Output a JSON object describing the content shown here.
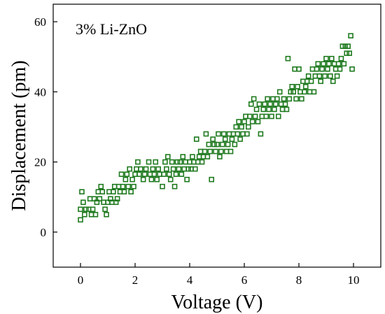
{
  "chart_data": {
    "type": "scatter",
    "annotation": "3% Li-ZnO",
    "xlabel": "Voltage (V)",
    "ylabel": "Displacement (pm)",
    "xlim": [
      -1,
      11
    ],
    "ylim": [
      -10,
      65
    ],
    "x_ticks": [
      0,
      2,
      4,
      6,
      8,
      10
    ],
    "y_ticks": [
      0,
      20,
      40,
      60
    ],
    "grid": false,
    "legend": "none",
    "marker": "square",
    "color": "#1f7a1f",
    "points": [
      [
        0.0,
        3.5
      ],
      [
        0.0,
        6.5
      ],
      [
        0.05,
        11.5
      ],
      [
        0.1,
        8.5
      ],
      [
        0.15,
        5.0
      ],
      [
        0.2,
        6.5
      ],
      [
        0.3,
        6.5
      ],
      [
        0.35,
        9.5
      ],
      [
        0.4,
        5.0
      ],
      [
        0.45,
        6.5
      ],
      [
        0.5,
        9.5
      ],
      [
        0.55,
        5.0
      ],
      [
        0.6,
        8.5
      ],
      [
        0.65,
        11.5
      ],
      [
        0.7,
        9.5
      ],
      [
        0.75,
        13.0
      ],
      [
        0.8,
        11.5
      ],
      [
        0.85,
        8.5
      ],
      [
        0.9,
        6.5
      ],
      [
        0.95,
        5.0
      ],
      [
        1.0,
        8.5
      ],
      [
        1.05,
        11.5
      ],
      [
        1.1,
        9.5
      ],
      [
        1.15,
        8.5
      ],
      [
        1.2,
        11.5
      ],
      [
        1.25,
        13.0
      ],
      [
        1.3,
        8.5
      ],
      [
        1.35,
        9.5
      ],
      [
        1.4,
        13.0
      ],
      [
        1.45,
        11.5
      ],
      [
        1.5,
        16.5
      ],
      [
        1.55,
        13.0
      ],
      [
        1.6,
        11.5
      ],
      [
        1.65,
        15.0
      ],
      [
        1.7,
        16.5
      ],
      [
        1.75,
        13.0
      ],
      [
        1.8,
        18.0
      ],
      [
        1.85,
        11.5
      ],
      [
        1.9,
        15.0
      ],
      [
        1.95,
        13.0
      ],
      [
        2.0,
        16.5
      ],
      [
        2.05,
        18.0
      ],
      [
        2.1,
        20.0
      ],
      [
        2.15,
        16.5
      ],
      [
        2.2,
        18.0
      ],
      [
        2.3,
        15.0
      ],
      [
        2.35,
        16.5
      ],
      [
        2.4,
        18.0
      ],
      [
        2.5,
        20.0
      ],
      [
        2.55,
        16.5
      ],
      [
        2.6,
        15.0
      ],
      [
        2.65,
        18.0
      ],
      [
        2.7,
        16.5
      ],
      [
        2.75,
        20.0
      ],
      [
        2.8,
        15.0
      ],
      [
        2.85,
        18.0
      ],
      [
        2.9,
        16.5
      ],
      [
        3.0,
        13.0
      ],
      [
        3.05,
        16.5
      ],
      [
        3.1,
        20.0
      ],
      [
        3.15,
        18.0
      ],
      [
        3.2,
        21.5
      ],
      [
        3.25,
        16.5
      ],
      [
        3.3,
        15.0
      ],
      [
        3.35,
        20.0
      ],
      [
        3.4,
        18.0
      ],
      [
        3.45,
        13.0
      ],
      [
        3.5,
        16.5
      ],
      [
        3.55,
        20.0
      ],
      [
        3.6,
        18.0
      ],
      [
        3.65,
        20.0
      ],
      [
        3.7,
        16.5
      ],
      [
        3.75,
        21.5
      ],
      [
        3.8,
        18.0
      ],
      [
        3.85,
        20.0
      ],
      [
        3.9,
        15.0
      ],
      [
        3.95,
        18.0
      ],
      [
        4.0,
        20.0
      ],
      [
        4.05,
        18.0
      ],
      [
        4.1,
        21.5
      ],
      [
        4.15,
        20.0
      ],
      [
        4.2,
        18.0
      ],
      [
        4.25,
        26.5
      ],
      [
        4.3,
        20.0
      ],
      [
        4.35,
        21.5
      ],
      [
        4.4,
        23.0
      ],
      [
        4.45,
        20.0
      ],
      [
        4.5,
        21.5
      ],
      [
        4.55,
        23.0
      ],
      [
        4.6,
        28.0
      ],
      [
        4.65,
        21.5
      ],
      [
        4.7,
        25.0
      ],
      [
        4.75,
        23.0
      ],
      [
        4.8,
        15.0
      ],
      [
        4.85,
        26.5
      ],
      [
        4.9,
        25.0
      ],
      [
        4.95,
        23.0
      ],
      [
        5.0,
        25.0
      ],
      [
        5.05,
        28.0
      ],
      [
        5.1,
        21.5
      ],
      [
        5.15,
        23.0
      ],
      [
        5.2,
        25.0
      ],
      [
        5.25,
        28.0
      ],
      [
        5.3,
        26.5
      ],
      [
        5.35,
        23.0
      ],
      [
        5.4,
        25.0
      ],
      [
        5.45,
        28.0
      ],
      [
        5.5,
        23.0
      ],
      [
        5.55,
        26.5
      ],
      [
        5.6,
        28.0
      ],
      [
        5.65,
        25.0
      ],
      [
        5.7,
        30.0
      ],
      [
        5.75,
        28.0
      ],
      [
        5.8,
        31.5
      ],
      [
        5.85,
        26.5
      ],
      [
        5.9,
        30.0
      ],
      [
        5.95,
        28.0
      ],
      [
        6.0,
        31.5
      ],
      [
        6.05,
        33.0
      ],
      [
        6.1,
        28.0
      ],
      [
        6.15,
        30.0
      ],
      [
        6.2,
        33.0
      ],
      [
        6.25,
        36.5
      ],
      [
        6.3,
        31.5
      ],
      [
        6.35,
        38.0
      ],
      [
        6.4,
        33.0
      ],
      [
        6.45,
        35.0
      ],
      [
        6.5,
        31.5
      ],
      [
        6.55,
        36.5
      ],
      [
        6.6,
        28.0
      ],
      [
        6.65,
        33.0
      ],
      [
        6.7,
        35.0
      ],
      [
        6.75,
        36.5
      ],
      [
        6.8,
        33.0
      ],
      [
        6.85,
        38.0
      ],
      [
        6.9,
        35.0
      ],
      [
        6.95,
        36.5
      ],
      [
        7.0,
        33.0
      ],
      [
        7.05,
        38.0
      ],
      [
        7.1,
        35.0
      ],
      [
        7.15,
        36.5
      ],
      [
        7.2,
        38.0
      ],
      [
        7.25,
        33.0
      ],
      [
        7.3,
        40.0
      ],
      [
        7.35,
        36.5
      ],
      [
        7.4,
        35.0
      ],
      [
        7.45,
        38.0
      ],
      [
        7.5,
        36.5
      ],
      [
        7.55,
        35.0
      ],
      [
        7.6,
        49.5
      ],
      [
        7.65,
        38.0
      ],
      [
        7.7,
        40.0
      ],
      [
        7.75,
        41.5
      ],
      [
        7.8,
        40.0
      ],
      [
        7.85,
        46.5
      ],
      [
        7.9,
        38.0
      ],
      [
        7.95,
        41.5
      ],
      [
        8.0,
        46.5
      ],
      [
        8.05,
        40.0
      ],
      [
        8.1,
        38.0
      ],
      [
        8.15,
        43.0
      ],
      [
        8.2,
        40.0
      ],
      [
        8.25,
        41.5
      ],
      [
        8.3,
        43.0
      ],
      [
        8.35,
        44.5
      ],
      [
        8.4,
        40.0
      ],
      [
        8.45,
        43.0
      ],
      [
        8.5,
        46.5
      ],
      [
        8.55,
        40.0
      ],
      [
        8.6,
        44.5
      ],
      [
        8.65,
        46.5
      ],
      [
        8.7,
        48.0
      ],
      [
        8.75,
        44.5
      ],
      [
        8.8,
        43.0
      ],
      [
        8.85,
        46.5
      ],
      [
        8.9,
        48.0
      ],
      [
        8.95,
        44.5
      ],
      [
        9.0,
        49.5
      ],
      [
        9.05,
        46.5
      ],
      [
        9.1,
        48.0
      ],
      [
        9.15,
        44.5
      ],
      [
        9.2,
        49.5
      ],
      [
        9.25,
        43.0
      ],
      [
        9.3,
        48.0
      ],
      [
        9.35,
        46.5
      ],
      [
        9.4,
        44.5
      ],
      [
        9.45,
        48.0
      ],
      [
        9.5,
        46.5
      ],
      [
        9.55,
        49.5
      ],
      [
        9.6,
        53.0
      ],
      [
        9.65,
        48.0
      ],
      [
        9.7,
        53.0
      ],
      [
        9.75,
        51.0
      ],
      [
        9.8,
        53.0
      ],
      [
        9.85,
        51.0
      ],
      [
        9.9,
        56.0
      ],
      [
        9.95,
        46.5
      ]
    ]
  }
}
